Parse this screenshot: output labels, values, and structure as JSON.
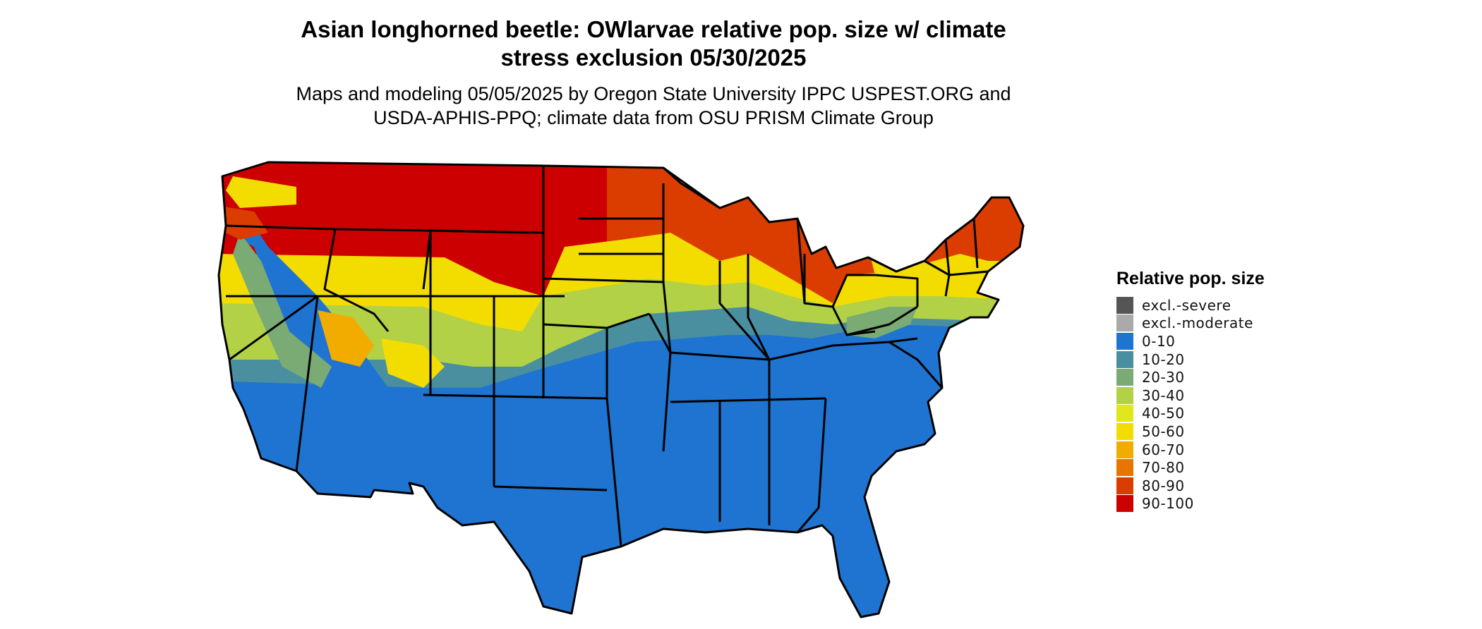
{
  "title": "Asian longhorned beetle: OWlarvae relative pop. size w/ climate stress exclusion 05/30/2025",
  "subtitle": "Maps and modeling 05/05/2025 by Oregon State University IPPC USPEST.ORG and USDA-APHIS-PPQ; climate data from OSU PRISM Climate Group",
  "legend": {
    "title": "Relative pop. size",
    "items": [
      {
        "label": "excl.-severe",
        "color": "#555555"
      },
      {
        "label": "excl.-moderate",
        "color": "#aaaaaa"
      },
      {
        "label": "0-10",
        "color": "#1e74d0"
      },
      {
        "label": "10-20",
        "color": "#4a8fa0"
      },
      {
        "label": "20-30",
        "color": "#7aab74"
      },
      {
        "label": "30-40",
        "color": "#b2d146"
      },
      {
        "label": "40-50",
        "color": "#e0e81c"
      },
      {
        "label": "50-60",
        "color": "#f3dd00"
      },
      {
        "label": "60-70",
        "color": "#f2ac00"
      },
      {
        "label": "70-80",
        "color": "#e77500"
      },
      {
        "label": "80-90",
        "color": "#db3d00"
      },
      {
        "label": "90-100",
        "color": "#cc0000"
      }
    ]
  }
}
